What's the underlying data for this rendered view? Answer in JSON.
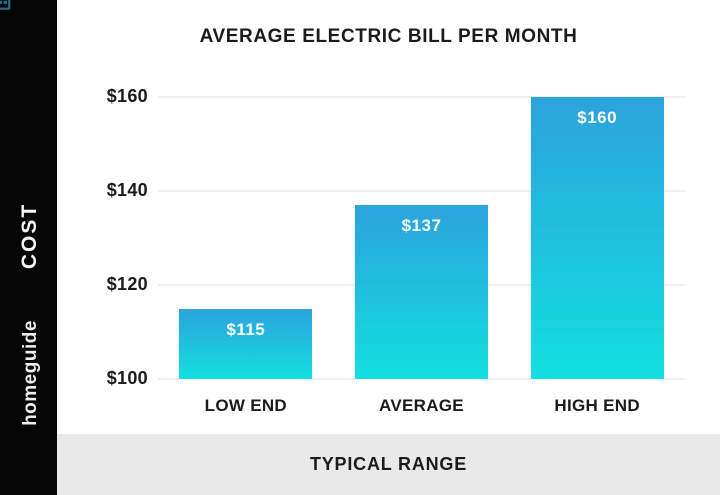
{
  "brand": {
    "sidebar_vertical_label": "COST",
    "logo_text": "homeguide",
    "logo_icon": "house-grid-icon",
    "colors": {
      "sidebar_bg": "#060606",
      "logo_icon": "#1a7396",
      "logo_text": "#ededed"
    }
  },
  "footer": {
    "label": "TYPICAL RANGE",
    "bg": "#e9e9e9"
  },
  "chart_data": {
    "type": "bar",
    "title": "AVERAGE ELECTRIC BILL PER MONTH",
    "categories": [
      "LOW END",
      "AVERAGE",
      "HIGH END"
    ],
    "values": [
      115,
      137,
      160
    ],
    "bar_labels": [
      "$115",
      "$137",
      "$160"
    ],
    "ylim": [
      100,
      160
    ],
    "yticks": [
      100,
      120,
      140,
      160
    ],
    "ytick_labels": [
      "$100",
      "$120",
      "$140",
      "$160"
    ],
    "xlabel": "",
    "ylabel": "",
    "grid": true,
    "legend": "none",
    "colors": {
      "bar_gradient_top": "#2ca3dc",
      "bar_gradient_bottom": "#12dfe0",
      "gridline": "#efefef",
      "text": "#1b1b1b",
      "bar_value_text": "#ffffff"
    }
  }
}
